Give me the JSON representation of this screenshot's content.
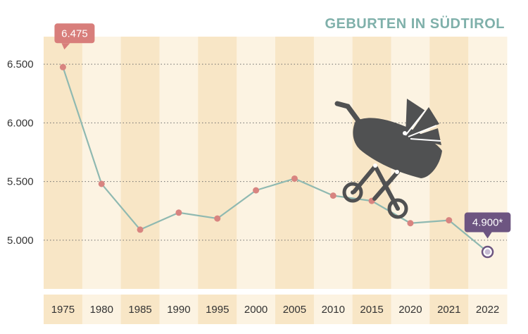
{
  "chart_data": {
    "type": "line",
    "title": "GEBURTEN IN SÜDTIROL",
    "categories": [
      "1975",
      "1980",
      "1985",
      "1990",
      "1995",
      "2000",
      "2005",
      "2010",
      "2015",
      "2020",
      "2021",
      "2022"
    ],
    "series": [
      {
        "values": [
          6475,
          5480,
          5090,
          5235,
          5185,
          5425,
          5525,
          5380,
          5335,
          5145,
          5170,
          4900
        ]
      }
    ],
    "yticks": [
      {
        "value": 5000,
        "label": "5.000"
      },
      {
        "value": 5500,
        "label": "5.500"
      },
      {
        "value": 6000,
        "label": "6.000"
      },
      {
        "value": 6500,
        "label": "6.500"
      }
    ],
    "ylim": [
      4585,
      6735
    ],
    "grid": "horizontal-dotted",
    "annotations": [
      {
        "category": "1975",
        "text": "6.475",
        "color": "#d87e7b"
      },
      {
        "category": "2022",
        "text": "4.900*",
        "color": "#6d5581"
      }
    ],
    "colors": {
      "line": "#8fb9b1",
      "marker": "#d88480",
      "highlight": "#6d5581",
      "band_dark": "#f8e6c6",
      "band_light": "#fcf3e2",
      "title": "#7fb0aa",
      "icon": "#505152"
    },
    "icon": "baby-stroller-icon"
  }
}
